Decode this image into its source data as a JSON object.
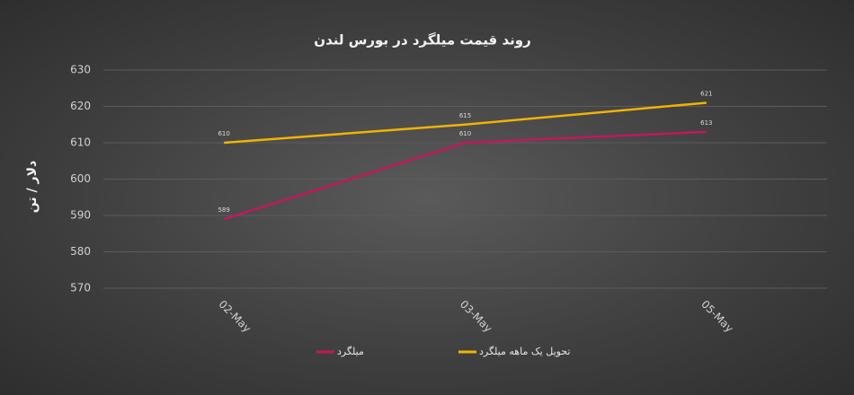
{
  "chart_data": {
    "type": "line",
    "title": "روند  قیمت میلگرد در بورس لندن",
    "y_label": "دلار / تن",
    "categories": [
      "02-May",
      "03-May",
      "05-May"
    ],
    "series": [
      {
        "name": "میلگرد",
        "color": "#c2185b",
        "values": [
          589,
          610,
          613
        ]
      },
      {
        "name": "تحویل یک ماهه میلگرد",
        "color": "#f0b400",
        "values": [
          610,
          615,
          621
        ]
      }
    ],
    "ylim": [
      570,
      630
    ],
    "yticks": [
      570,
      580,
      590,
      600,
      610,
      620,
      630
    ],
    "grid": true
  }
}
